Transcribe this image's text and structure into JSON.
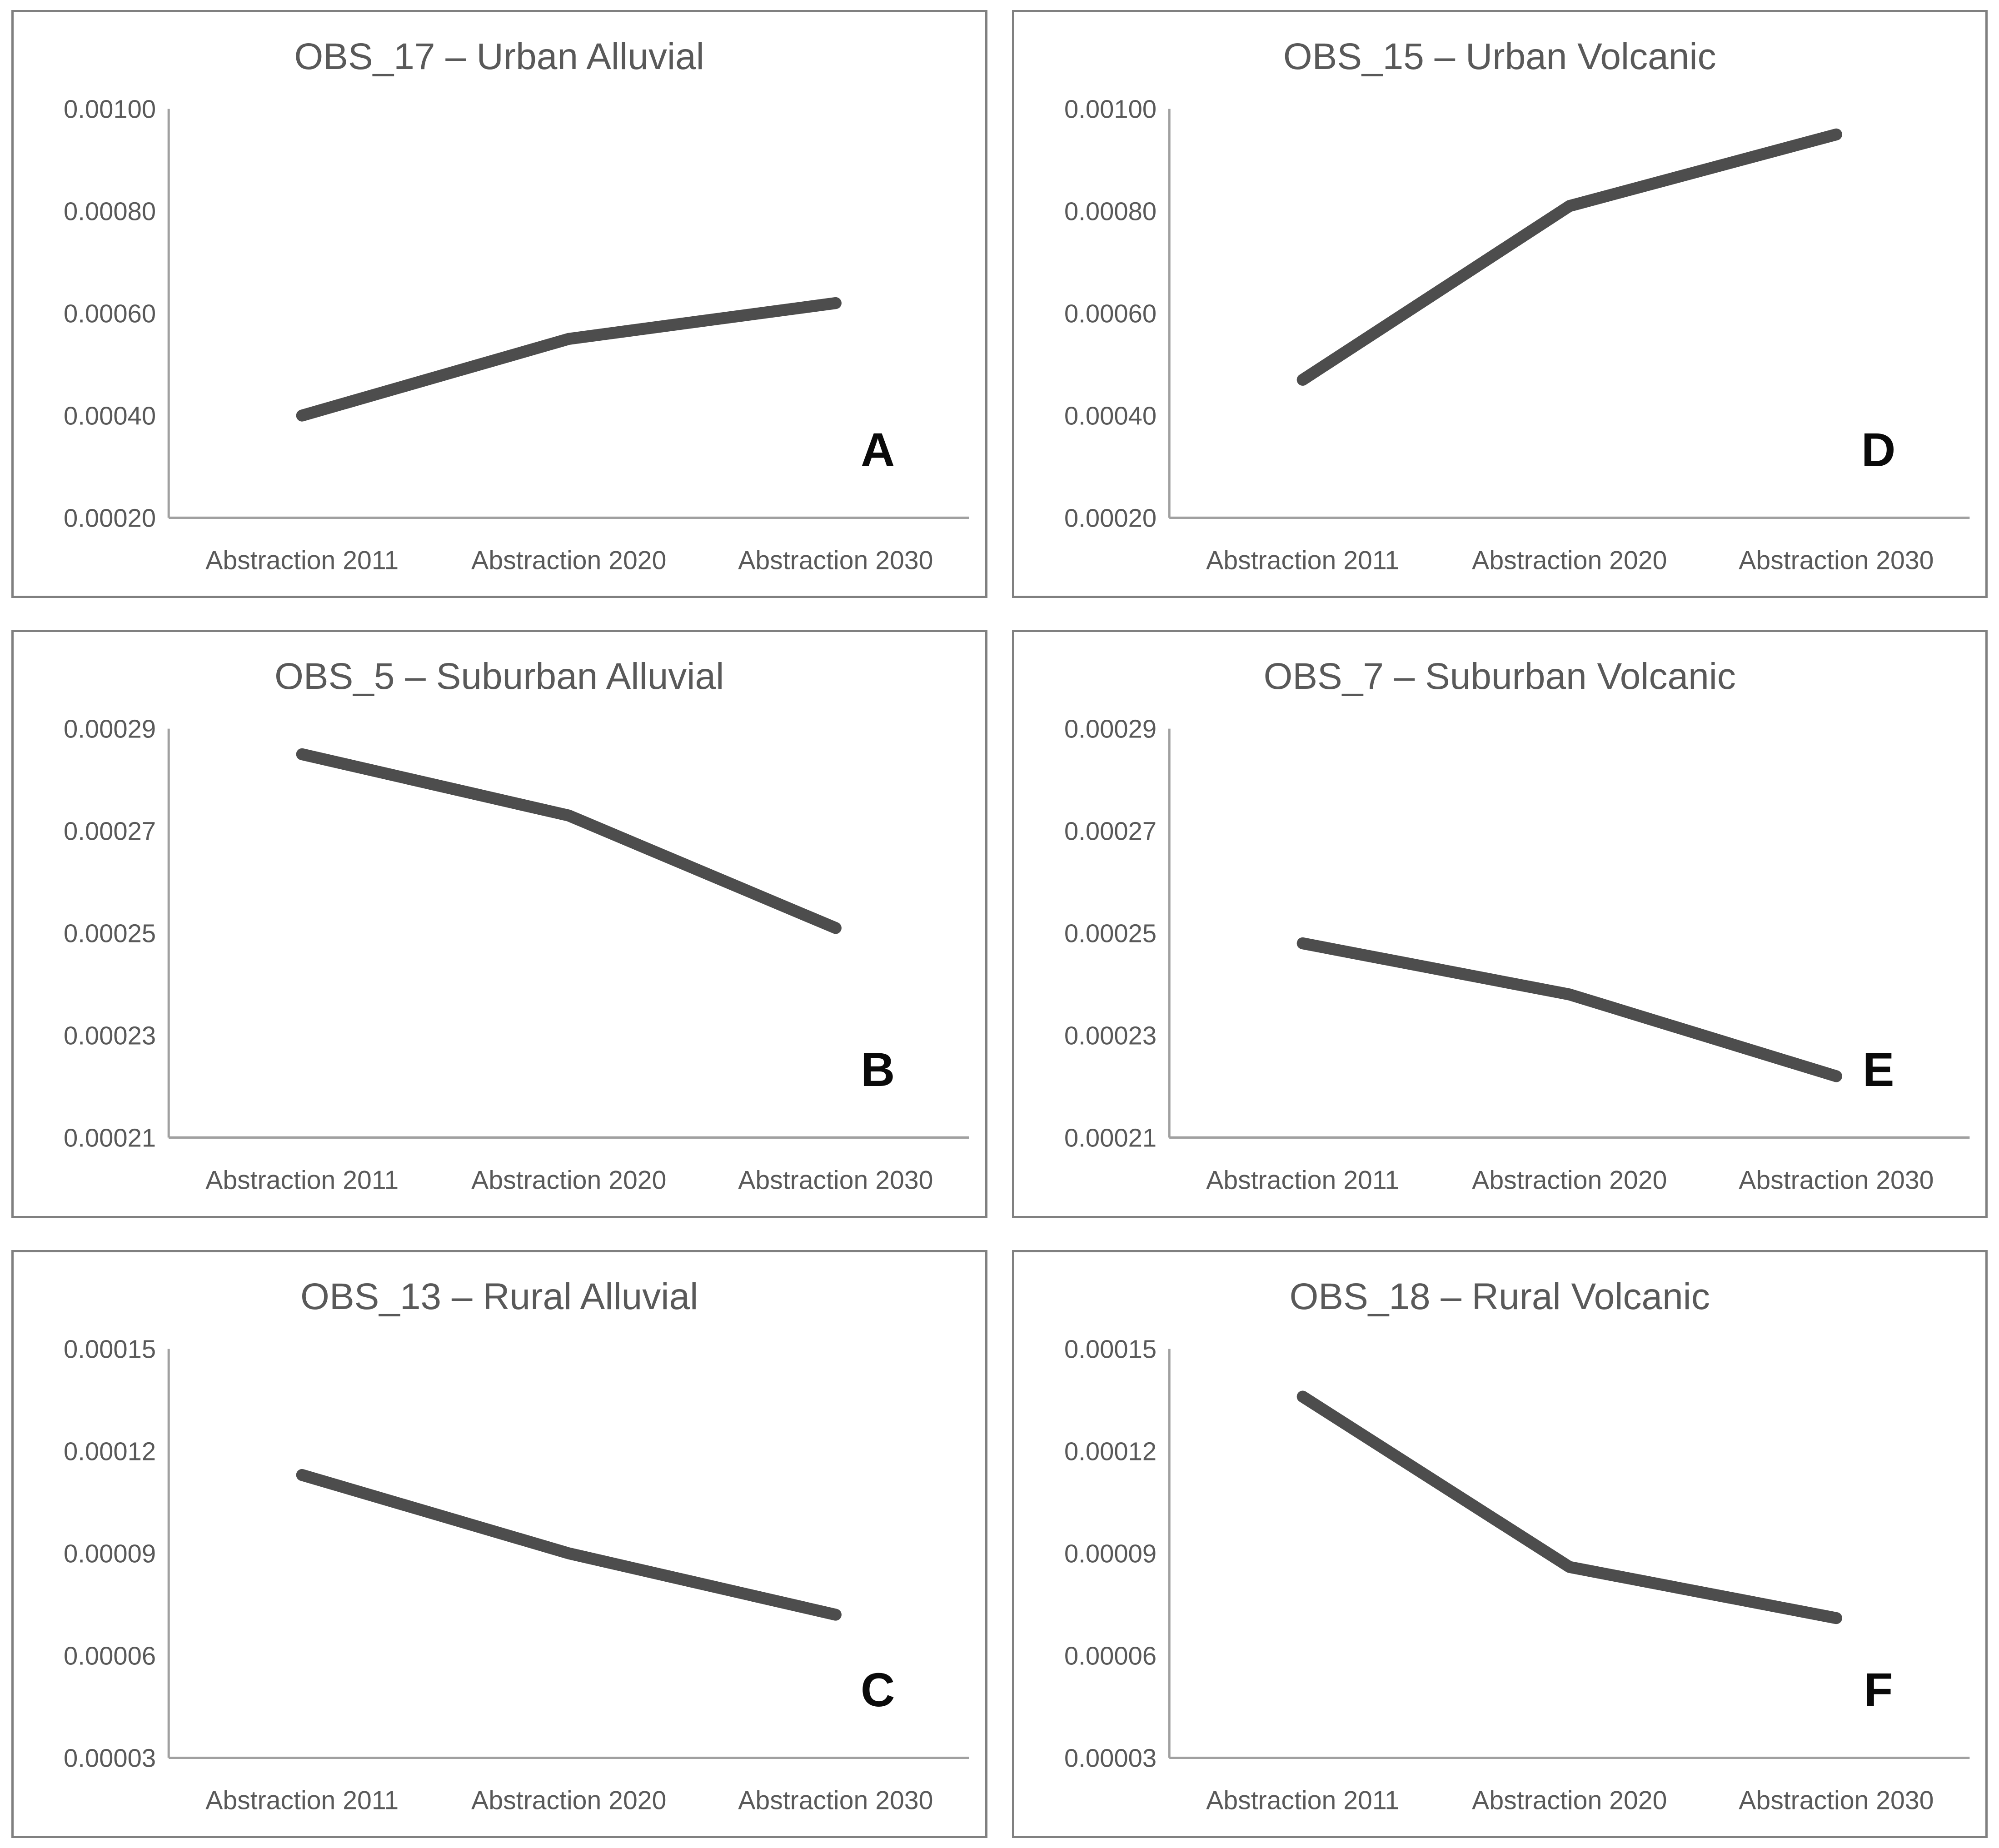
{
  "figure": {
    "layout": "2x3-grid",
    "background": "#ffffff",
    "panel_border_color": "#808080",
    "line_color": "#4d4d4d",
    "axis_color": "#a0a0a0",
    "text_color": "#595959",
    "letter_color": "#0a0a0a",
    "grid": "off",
    "legend": "none"
  },
  "chart_data": [
    {
      "type": "line",
      "title": "OBS_17 – Urban Alluvial",
      "letter": "A",
      "categories": [
        "Abstraction 2011",
        "Abstraction 2020",
        "Abstraction 2030"
      ],
      "values": [
        0.0004,
        0.00055,
        0.00062
      ],
      "ylim": [
        0.0002,
        0.001
      ],
      "ytick_labels": [
        "0.00100",
        "0.00080",
        "0.00060",
        "0.00040",
        "0.00020"
      ],
      "ytick_values": [
        0.001,
        0.0008,
        0.0006,
        0.0004,
        0.0002
      ],
      "xlabel": "",
      "ylabel": ""
    },
    {
      "type": "line",
      "title": "OBS_15 – Urban Volcanic",
      "letter": "D",
      "categories": [
        "Abstraction 2011",
        "Abstraction 2020",
        "Abstraction 2030"
      ],
      "values": [
        0.00047,
        0.00081,
        0.00095
      ],
      "ylim": [
        0.0002,
        0.001
      ],
      "ytick_labels": [
        "0.00100",
        "0.00080",
        "0.00060",
        "0.00040",
        "0.00020"
      ],
      "ytick_values": [
        0.001,
        0.0008,
        0.0006,
        0.0004,
        0.0002
      ],
      "xlabel": "",
      "ylabel": ""
    },
    {
      "type": "line",
      "title": "OBS_5 – Suburban Alluvial",
      "letter": "B",
      "categories": [
        "Abstraction 2011",
        "Abstraction 2020",
        "Abstraction 2030"
      ],
      "values": [
        0.000285,
        0.000273,
        0.000251
      ],
      "ylim": [
        0.00021,
        0.00029
      ],
      "ytick_labels": [
        "0.00029",
        "0.00027",
        "0.00025",
        "0.00023",
        "0.00021"
      ],
      "ytick_values": [
        0.00029,
        0.00027,
        0.00025,
        0.00023,
        0.00021
      ],
      "xlabel": "",
      "ylabel": ""
    },
    {
      "type": "line",
      "title": "OBS_7 – Suburban Volcanic",
      "letter": "E",
      "categories": [
        "Abstraction 2011",
        "Abstraction 2020",
        "Abstraction 2030"
      ],
      "values": [
        0.000248,
        0.000238,
        0.000222
      ],
      "ylim": [
        0.00021,
        0.00029
      ],
      "ytick_labels": [
        "0.00029",
        "0.00027",
        "0.00025",
        "0.00023",
        "0.00021"
      ],
      "ytick_values": [
        0.00029,
        0.00027,
        0.00025,
        0.00023,
        0.00021
      ],
      "xlabel": "",
      "ylabel": ""
    },
    {
      "type": "line",
      "title": "OBS_13 – Rural Alluvial",
      "letter": "C",
      "categories": [
        "Abstraction 2011",
        "Abstraction 2020",
        "Abstraction 2030"
      ],
      "values": [
        0.000113,
        9e-05,
        7.2e-05
      ],
      "ylim": [
        3e-05,
        0.00015
      ],
      "ytick_labels": [
        "0.00015",
        "0.00012",
        "0.00009",
        "0.00006",
        "0.00003"
      ],
      "ytick_values": [
        0.00015,
        0.00012,
        9e-05,
        6e-05,
        3e-05
      ],
      "xlabel": "",
      "ylabel": ""
    },
    {
      "type": "line",
      "title": "OBS_18 – Rural Volcanic",
      "letter": "F",
      "categories": [
        "Abstraction 2011",
        "Abstraction 2020",
        "Abstraction 2030"
      ],
      "values": [
        0.000136,
        8.6e-05,
        7.1e-05
      ],
      "ylim": [
        3e-05,
        0.00015
      ],
      "ytick_labels": [
        "0.00015",
        "0.00012",
        "0.00009",
        "0.00006",
        "0.00003"
      ],
      "ytick_values": [
        0.00015,
        0.00012,
        9e-05,
        6e-05,
        3e-05
      ],
      "xlabel": "",
      "ylabel": ""
    }
  ]
}
